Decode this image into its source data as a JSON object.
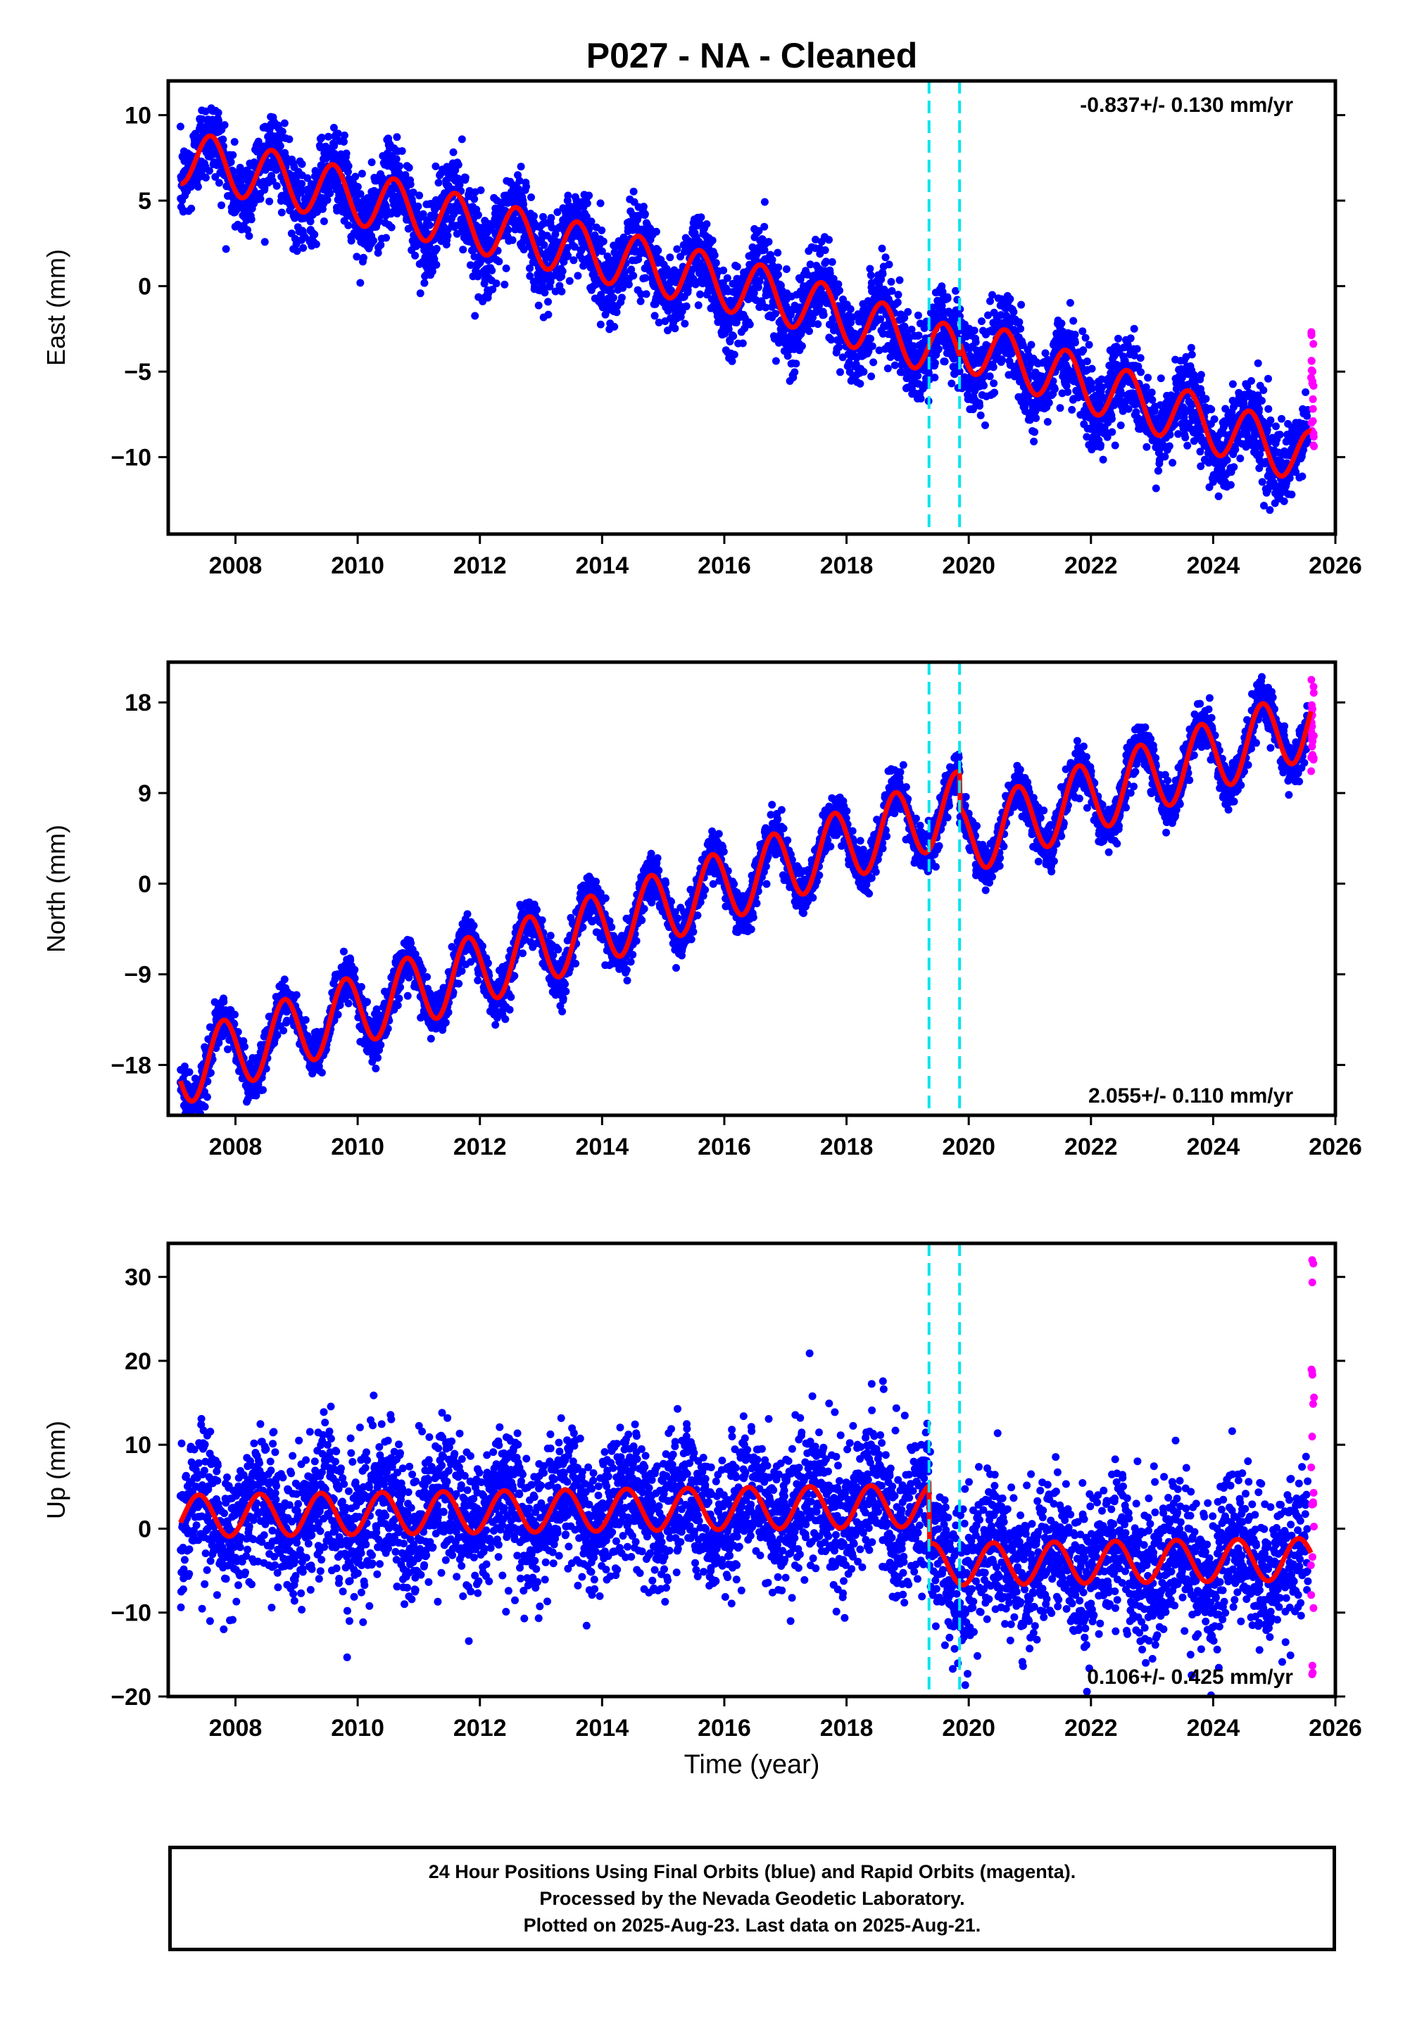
{
  "title": "P027  - NA - Cleaned",
  "xlabel": "Time (year)",
  "colors": {
    "final_orbits": "#0000ff",
    "rapid_orbits": "#ff00ff",
    "model": "#ff0000",
    "breaks": "#00e5ee"
  },
  "chart_data": [
    {
      "type": "scatter",
      "name": "east",
      "ylabel": "East (mm)",
      "xlim": [
        2006.9,
        2026.0
      ],
      "ylim": [
        -14.5,
        12
      ],
      "yticks": [
        10,
        5,
        0,
        -5,
        -10
      ],
      "ytick_labels": [
        "10",
        "5",
        "0",
        "−5",
        "−10"
      ],
      "xticks": [
        2008,
        2010,
        2012,
        2014,
        2016,
        2018,
        2020,
        2022,
        2024,
        2026
      ],
      "xtick_labels": [
        "2008",
        "2010",
        "2012",
        "2014",
        "2016",
        "2018",
        "2020",
        "2022",
        "2024",
        "2026"
      ],
      "rate_label": "-0.837+/- 0.130 mm/yr",
      "rate_label_position": "top-right",
      "breaks": [
        2019.35,
        2019.85
      ],
      "model": {
        "start": 2007.1,
        "end": 2025.6,
        "intercept": 7.6,
        "rate": -0.837,
        "annual_amplitude": 1.6,
        "phase": 0.35,
        "offsets": [
          {
            "t": 2019.85,
            "d": 0.8
          }
        ]
      },
      "scatter": {
        "rate_mm_per_yr": -0.837,
        "curvature_after_2017": -0.35,
        "scatter_sd": 1.2
      },
      "rapid_orbits_range": [
        -9.8,
        -2.0
      ]
    },
    {
      "type": "scatter",
      "name": "north",
      "ylabel": "North (mm)",
      "xlim": [
        2006.9,
        2026.0
      ],
      "ylim": [
        -23,
        22
      ],
      "yticks": [
        18,
        9,
        0,
        -9,
        -18
      ],
      "ytick_labels": [
        "18",
        "9",
        "0",
        "−9",
        "−18"
      ],
      "xticks": [
        2008,
        2010,
        2012,
        2014,
        2016,
        2018,
        2020,
        2022,
        2024,
        2026
      ],
      "xtick_labels": [
        "2008",
        "2010",
        "2012",
        "2014",
        "2016",
        "2018",
        "2020",
        "2022",
        "2024",
        "2026"
      ],
      "rate_label": "2.055+/- 0.110 mm/yr",
      "rate_label_position": "bottom-right",
      "breaks": [
        2019.35,
        2019.85
      ],
      "model": {
        "start": 2007.1,
        "end": 2025.6,
        "intercept": -18.5,
        "rate": 2.055,
        "annual_amplitude": 3.5,
        "phase": 0.55,
        "offsets": [
          {
            "t": 2019.85,
            "d": -3.5
          }
        ]
      },
      "scatter": {
        "rate_mm_per_yr": 2.055,
        "scatter_sd": 1.1
      },
      "rapid_orbits_range": [
        11.0,
        21.0
      ]
    },
    {
      "type": "scatter",
      "name": "up",
      "ylabel": "Up (mm)",
      "xlim": [
        2006.9,
        2026.0
      ],
      "ylim": [
        -20,
        34
      ],
      "yticks": [
        30,
        20,
        10,
        0,
        -10,
        -20
      ],
      "ytick_labels": [
        "30",
        "20",
        "10",
        "0",
        "−10",
        "−20"
      ],
      "xticks": [
        2008,
        2010,
        2012,
        2014,
        2016,
        2018,
        2020,
        2022,
        2024,
        2026
      ],
      "xtick_labels": [
        "2008",
        "2010",
        "2012",
        "2014",
        "2016",
        "2018",
        "2020",
        "2022",
        "2024",
        "2026"
      ],
      "rate_label": "0.106+/- 0.425 mm/yr",
      "rate_label_position": "bottom-right",
      "breaks": [
        2019.35,
        2019.85
      ],
      "model": {
        "start": 2007.1,
        "end": 2025.6,
        "intercept": 1.5,
        "rate": 0.1,
        "annual_amplitude": 2.5,
        "phase": 0.15,
        "offsets": [
          {
            "t": 2019.35,
            "d": -7.0
          }
        ]
      },
      "scatter": {
        "rate_mm_per_yr": 0.106,
        "scatter_sd": 4.2
      },
      "rapid_orbits_range": [
        -17.5,
        33.0
      ]
    }
  ],
  "footer": {
    "line1": "24 Hour Positions Using Final Orbits (blue) and Rapid Orbits (magenta).",
    "line2": "Processed by the Nevada Geodetic Laboratory.",
    "line3": "Plotted on 2025-Aug-23. Last data on 2025-Aug-21."
  }
}
